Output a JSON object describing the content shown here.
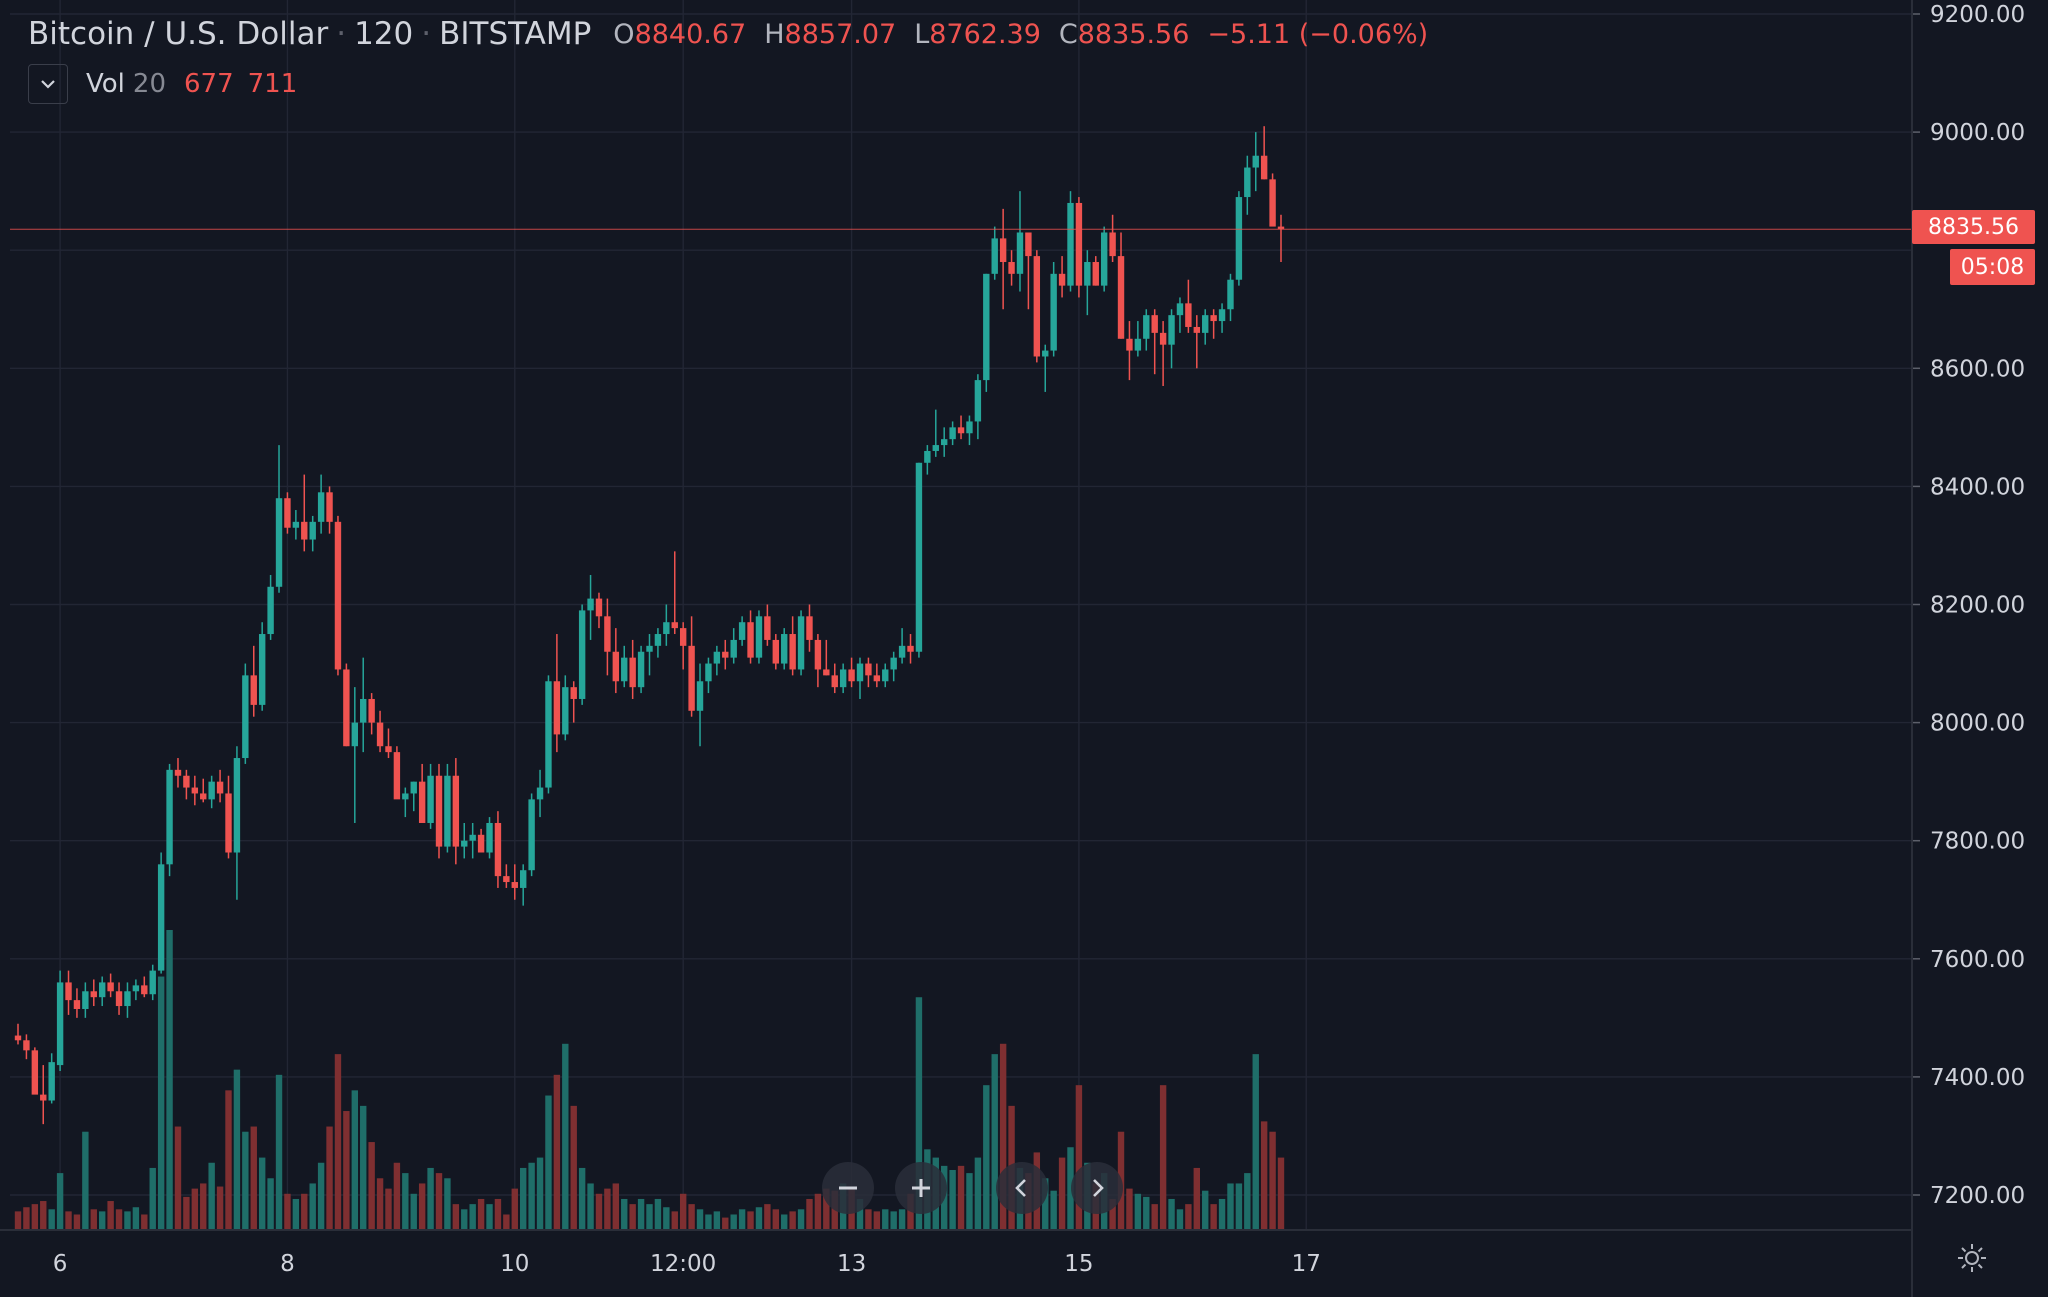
{
  "header": {
    "symbol": "Bitcoin / U.S. Dollar",
    "interval": "120",
    "exchange": "BITSTAMP",
    "o_label": "O",
    "open": "8840.67",
    "h_label": "H",
    "high": "8857.07",
    "l_label": "L",
    "low": "8762.39",
    "c_label": "C",
    "close": "8835.56",
    "change": "−5.11 (−0.06%)"
  },
  "volume_legend": {
    "label": "Vol",
    "length": "20",
    "value1": "677",
    "value2": "711"
  },
  "price_scale": {
    "last_price": "8835.56",
    "countdown": "05:08"
  },
  "colors": {
    "background": "#131722",
    "grid": "#222634",
    "up": "#26a69a",
    "down": "#ef5350",
    "text": "#d1d4dc"
  },
  "icons": [
    "chevron-down-icon",
    "zoom-out-icon",
    "zoom-in-icon",
    "scroll-left-icon",
    "scroll-right-icon",
    "settings-icon"
  ],
  "chart_data": {
    "type": "candlestick",
    "title": "Bitcoin / U.S. Dollar",
    "interval": "120",
    "y_ticks": [
      "9200.00",
      "9000.00",
      "8600.00",
      "8400.00",
      "8200.00",
      "8000.00",
      "7800.00",
      "7600.00",
      "7400.00",
      "7200.00"
    ],
    "ylim": [
      7150,
      9230
    ],
    "x_ticks": [
      {
        "label": "6",
        "bar": 5
      },
      {
        "label": "8",
        "bar": 32
      },
      {
        "label": "10",
        "bar": 59
      },
      {
        "label": "12:00",
        "bar": 79
      },
      {
        "label": "13",
        "bar": 99
      },
      {
        "label": "15",
        "bar": 126
      },
      {
        "label": "17",
        "bar": 153
      }
    ],
    "grid": true,
    "last_price_line": 8835.56,
    "candles": [
      [
        7470,
        7490,
        7455,
        7462,
        18
      ],
      [
        7462,
        7472,
        7430,
        7445,
        22
      ],
      [
        7445,
        7450,
        7380,
        7370,
        25
      ],
      [
        7370,
        7420,
        7320,
        7360,
        28
      ],
      [
        7360,
        7440,
        7355,
        7425,
        20
      ],
      [
        7420,
        7580,
        7410,
        7560,
        55
      ],
      [
        7560,
        7580,
        7505,
        7530,
        18
      ],
      [
        7530,
        7550,
        7500,
        7515,
        15
      ],
      [
        7515,
        7560,
        7500,
        7545,
        95
      ],
      [
        7545,
        7565,
        7520,
        7535,
        20
      ],
      [
        7535,
        7570,
        7520,
        7560,
        18
      ],
      [
        7560,
        7575,
        7535,
        7545,
        28
      ],
      [
        7545,
        7560,
        7505,
        7520,
        20
      ],
      [
        7520,
        7560,
        7500,
        7545,
        18
      ],
      [
        7545,
        7565,
        7530,
        7555,
        22
      ],
      [
        7555,
        7570,
        7535,
        7540,
        15
      ],
      [
        7540,
        7590,
        7530,
        7580,
        60
      ],
      [
        7580,
        7780,
        7575,
        7760,
        245
      ],
      [
        7760,
        7930,
        7740,
        7920,
        290
      ],
      [
        7920,
        7940,
        7890,
        7910,
        100
      ],
      [
        7910,
        7920,
        7870,
        7890,
        32
      ],
      [
        7890,
        7910,
        7860,
        7880,
        40
      ],
      [
        7880,
        7905,
        7865,
        7870,
        45
      ],
      [
        7870,
        7910,
        7855,
        7900,
        65
      ],
      [
        7900,
        7920,
        7865,
        7880,
        42
      ],
      [
        7880,
        7910,
        7770,
        7780,
        135
      ],
      [
        7780,
        7960,
        7700,
        7940,
        155
      ],
      [
        7940,
        8100,
        7930,
        8080,
        95
      ],
      [
        8080,
        8130,
        8010,
        8030,
        100
      ],
      [
        8030,
        8170,
        8020,
        8150,
        70
      ],
      [
        8150,
        8250,
        8140,
        8230,
        50
      ],
      [
        8230,
        8470,
        8220,
        8380,
        150
      ],
      [
        8380,
        8390,
        8320,
        8330,
        35
      ],
      [
        8330,
        8360,
        8310,
        8340,
        30
      ],
      [
        8340,
        8420,
        8290,
        8310,
        35
      ],
      [
        8310,
        8350,
        8290,
        8340,
        45
      ],
      [
        8340,
        8420,
        8320,
        8390,
        65
      ],
      [
        8390,
        8400,
        8320,
        8340,
        100
      ],
      [
        8340,
        8350,
        8080,
        8090,
        170
      ],
      [
        8090,
        8100,
        7960,
        7960,
        115
      ],
      [
        7960,
        8060,
        7830,
        8000,
        135
      ],
      [
        8000,
        8110,
        7950,
        8040,
        120
      ],
      [
        8040,
        8050,
        7980,
        8000,
        85
      ],
      [
        8000,
        8020,
        7950,
        7960,
        50
      ],
      [
        7960,
        7990,
        7940,
        7950,
        40
      ],
      [
        7950,
        7960,
        7880,
        7870,
        65
      ],
      [
        7870,
        7890,
        7840,
        7880,
        55
      ],
      [
        7880,
        7900,
        7850,
        7900,
        35
      ],
      [
        7900,
        7930,
        7850,
        7830,
        45
      ],
      [
        7830,
        7930,
        7820,
        7910,
        60
      ],
      [
        7910,
        7930,
        7770,
        7790,
        55
      ],
      [
        7790,
        7930,
        7780,
        7910,
        50
      ],
      [
        7910,
        7940,
        7760,
        7790,
        25
      ],
      [
        7790,
        7830,
        7770,
        7800,
        20
      ],
      [
        7800,
        7830,
        7770,
        7810,
        25
      ],
      [
        7810,
        7820,
        7790,
        7780,
        30
      ],
      [
        7780,
        7840,
        7770,
        7830,
        25
      ],
      [
        7830,
        7850,
        7720,
        7740,
        30
      ],
      [
        7740,
        7760,
        7720,
        7730,
        15
      ],
      [
        7730,
        7760,
        7700,
        7720,
        40
      ],
      [
        7720,
        7760,
        7690,
        7750,
        60
      ],
      [
        7750,
        7880,
        7740,
        7870,
        65
      ],
      [
        7870,
        7920,
        7840,
        7890,
        70
      ],
      [
        7890,
        8080,
        7880,
        8070,
        130
      ],
      [
        8070,
        8150,
        7950,
        7980,
        150
      ],
      [
        7980,
        8080,
        7970,
        8060,
        180
      ],
      [
        8060,
        8070,
        8000,
        8040,
        120
      ],
      [
        8040,
        8200,
        8030,
        8190,
        60
      ],
      [
        8190,
        8250,
        8140,
        8210,
        45
      ],
      [
        8210,
        8220,
        8160,
        8180,
        35
      ],
      [
        8180,
        8210,
        8080,
        8120,
        40
      ],
      [
        8120,
        8160,
        8050,
        8070,
        45
      ],
      [
        8070,
        8130,
        8060,
        8110,
        30
      ],
      [
        8110,
        8140,
        8040,
        8060,
        25
      ],
      [
        8060,
        8130,
        8050,
        8120,
        30
      ],
      [
        8120,
        8150,
        8080,
        8130,
        25
      ],
      [
        8130,
        8160,
        8110,
        8150,
        30
      ],
      [
        8150,
        8200,
        8130,
        8170,
        22
      ],
      [
        8170,
        8290,
        8150,
        8160,
        18
      ],
      [
        8160,
        8170,
        8090,
        8130,
        35
      ],
      [
        8130,
        8180,
        8010,
        8020,
        25
      ],
      [
        8020,
        8100,
        7960,
        8070,
        20
      ],
      [
        8070,
        8110,
        8050,
        8100,
        15
      ],
      [
        8100,
        8130,
        8080,
        8120,
        18
      ],
      [
        8120,
        8140,
        8090,
        8110,
        12
      ],
      [
        8110,
        8160,
        8100,
        8140,
        15
      ],
      [
        8140,
        8180,
        8130,
        8170,
        20
      ],
      [
        8170,
        8190,
        8100,
        8110,
        18
      ],
      [
        8110,
        8190,
        8100,
        8180,
        22
      ],
      [
        8180,
        8200,
        8130,
        8140,
        25
      ],
      [
        8140,
        8150,
        8090,
        8100,
        20
      ],
      [
        8100,
        8160,
        8090,
        8150,
        15
      ],
      [
        8150,
        8180,
        8080,
        8090,
        18
      ],
      [
        8090,
        8190,
        8080,
        8180,
        20
      ],
      [
        8180,
        8200,
        8120,
        8140,
        30
      ],
      [
        8140,
        8150,
        8060,
        8090,
        35
      ],
      [
        8090,
        8140,
        8080,
        8080,
        40
      ],
      [
        8080,
        8100,
        8050,
        8060,
        38
      ],
      [
        8060,
        8100,
        8050,
        8090,
        45
      ],
      [
        8090,
        8110,
        8060,
        8070,
        42
      ],
      [
        8070,
        8110,
        8040,
        8100,
        30
      ],
      [
        8100,
        8110,
        8060,
        8080,
        20
      ],
      [
        8080,
        8100,
        8060,
        8070,
        18
      ],
      [
        8070,
        8100,
        8060,
        8090,
        20
      ],
      [
        8090,
        8120,
        8070,
        8110,
        18
      ],
      [
        8110,
        8160,
        8100,
        8130,
        20
      ],
      [
        8130,
        8150,
        8100,
        8120,
        35
      ],
      [
        8120,
        8440,
        8110,
        8440,
        225
      ],
      [
        8440,
        8470,
        8420,
        8460,
        78
      ],
      [
        8460,
        8530,
        8450,
        8470,
        70
      ],
      [
        8470,
        8500,
        8450,
        8480,
        62
      ],
      [
        8480,
        8510,
        8470,
        8500,
        58
      ],
      [
        8500,
        8520,
        8480,
        8490,
        62
      ],
      [
        8490,
        8520,
        8470,
        8510,
        55
      ],
      [
        8510,
        8590,
        8480,
        8580,
        70
      ],
      [
        8580,
        8760,
        8560,
        8760,
        140
      ],
      [
        8760,
        8840,
        8750,
        8820,
        170
      ],
      [
        8820,
        8870,
        8700,
        8780,
        180
      ],
      [
        8780,
        8800,
        8740,
        8760,
        120
      ],
      [
        8760,
        8900,
        8730,
        8830,
        60
      ],
      [
        8830,
        8830,
        8700,
        8790,
        55
      ],
      [
        8790,
        8800,
        8610,
        8620,
        75
      ],
      [
        8620,
        8640,
        8560,
        8630,
        50
      ],
      [
        8630,
        8780,
        8620,
        8760,
        38
      ],
      [
        8760,
        8790,
        8720,
        8740,
        70
      ],
      [
        8740,
        8900,
        8730,
        8880,
        80
      ],
      [
        8880,
        8890,
        8720,
        8740,
        140
      ],
      [
        8740,
        8800,
        8690,
        8780,
        65
      ],
      [
        8780,
        8790,
        8740,
        8740,
        45
      ],
      [
        8740,
        8840,
        8730,
        8830,
        55
      ],
      [
        8830,
        8860,
        8780,
        8790,
        30
      ],
      [
        8790,
        8830,
        8650,
        8650,
        95
      ],
      [
        8650,
        8680,
        8580,
        8630,
        40
      ],
      [
        8630,
        8680,
        8620,
        8650,
        35
      ],
      [
        8650,
        8700,
        8630,
        8690,
        32
      ],
      [
        8690,
        8700,
        8590,
        8660,
        25
      ],
      [
        8660,
        8680,
        8570,
        8640,
        140
      ],
      [
        8640,
        8700,
        8600,
        8690,
        30
      ],
      [
        8690,
        8720,
        8660,
        8710,
        20
      ],
      [
        8710,
        8750,
        8660,
        8670,
        25
      ],
      [
        8670,
        8690,
        8600,
        8660,
        60
      ],
      [
        8660,
        8700,
        8640,
        8690,
        38
      ],
      [
        8690,
        8700,
        8650,
        8680,
        25
      ],
      [
        8680,
        8710,
        8660,
        8700,
        30
      ],
      [
        8700,
        8760,
        8680,
        8750,
        45
      ],
      [
        8750,
        8900,
        8740,
        8890,
        45
      ],
      [
        8890,
        8960,
        8860,
        8940,
        55
      ],
      [
        8940,
        9000,
        8900,
        8960,
        170
      ],
      [
        8960,
        9010,
        8920,
        8920,
        105
      ],
      [
        8920,
        8930,
        8850,
        8840,
        95
      ],
      [
        8840,
        8860,
        8780,
        8836,
        70
      ]
    ]
  }
}
